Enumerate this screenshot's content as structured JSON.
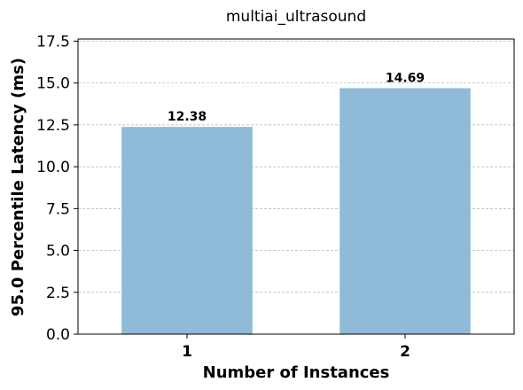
{
  "chart_data": {
    "type": "bar",
    "title": "multiai_ultrasound",
    "xlabel": "Number of Instances",
    "ylabel": "95.0 Percentile Latency (ms)",
    "categories": [
      "1",
      "2"
    ],
    "values": [
      12.38,
      14.69
    ],
    "value_labels": [
      "12.38",
      "14.69"
    ],
    "ylim": [
      0,
      17.63
    ],
    "yticks": [
      0.0,
      2.5,
      5.0,
      7.5,
      10.0,
      12.5,
      15.0,
      17.5
    ],
    "ytick_labels": [
      "0.0",
      "2.5",
      "5.0",
      "7.5",
      "10.0",
      "12.5",
      "15.0",
      "17.5"
    ],
    "grid": "y-dashed",
    "legend": "none",
    "bar_color": "#8fbad8",
    "grid_color": "#b0b0b0"
  }
}
